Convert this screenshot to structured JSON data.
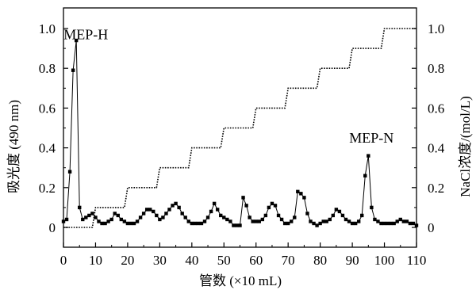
{
  "chart_data": {
    "type": "line",
    "xlabel": "管数 (×10 mL)",
    "ylabel_left": "吸光度 (490 nm)",
    "ylabel_right": "NaCl浓度/(mol/L)",
    "xlim": [
      0,
      110
    ],
    "ylim_left": [
      -0.1,
      1.0
    ],
    "ylim_right": [
      -0.1,
      1.0
    ],
    "x_ticks": [
      0,
      10,
      20,
      30,
      40,
      50,
      60,
      70,
      80,
      90,
      100,
      110
    ],
    "y_ticks_left": [
      0,
      0.2,
      0.4,
      0.6,
      0.8,
      1.0
    ],
    "y_ticks_right": [
      0,
      0.2,
      0.4,
      0.6,
      0.8,
      1.0
    ],
    "x_tick_labels": [
      "0",
      "10",
      "20",
      "30",
      "40",
      "50",
      "60",
      "70",
      "80",
      "90",
      "100",
      "110"
    ],
    "y_tick_labels": [
      "0",
      "0.2",
      "0.4",
      "0.6",
      "0.8",
      "1.0"
    ],
    "annotations": [
      {
        "text": "MEP-H",
        "x": 5,
        "y": 0.97
      },
      {
        "text": "MEP-N",
        "x": 94,
        "y": 0.45
      }
    ],
    "series": [
      {
        "style": "solid-square-markers",
        "axis": "left",
        "x": [
          0,
          1,
          2,
          3,
          4,
          5,
          6,
          7,
          8,
          9,
          10,
          11,
          12,
          13,
          14,
          15,
          16,
          17,
          18,
          19,
          20,
          21,
          22,
          23,
          24,
          25,
          26,
          27,
          28,
          29,
          30,
          31,
          32,
          33,
          34,
          35,
          36,
          37,
          38,
          39,
          40,
          41,
          42,
          43,
          44,
          45,
          46,
          47,
          48,
          49,
          50,
          51,
          52,
          53,
          54,
          55,
          56,
          57,
          58,
          59,
          60,
          61,
          62,
          63,
          64,
          65,
          66,
          67,
          68,
          69,
          70,
          71,
          72,
          73,
          74,
          75,
          76,
          77,
          78,
          79,
          80,
          81,
          82,
          83,
          84,
          85,
          86,
          87,
          88,
          89,
          90,
          91,
          92,
          93,
          94,
          95,
          96,
          97,
          98,
          99,
          100,
          101,
          102,
          103,
          104,
          105,
          106,
          107,
          108,
          109,
          110
        ],
        "y": [
          0.03,
          0.04,
          0.28,
          0.79,
          0.94,
          0.1,
          0.04,
          0.05,
          0.06,
          0.07,
          0.05,
          0.03,
          0.02,
          0.02,
          0.03,
          0.04,
          0.07,
          0.06,
          0.04,
          0.03,
          0.02,
          0.02,
          0.02,
          0.03,
          0.05,
          0.07,
          0.09,
          0.09,
          0.08,
          0.06,
          0.04,
          0.05,
          0.07,
          0.09,
          0.11,
          0.12,
          0.1,
          0.07,
          0.05,
          0.03,
          0.02,
          0.02,
          0.02,
          0.02,
          0.03,
          0.05,
          0.08,
          0.12,
          0.09,
          0.06,
          0.05,
          0.04,
          0.03,
          0.01,
          0.01,
          0.01,
          0.15,
          0.11,
          0.05,
          0.03,
          0.03,
          0.03,
          0.04,
          0.06,
          0.1,
          0.12,
          0.11,
          0.06,
          0.04,
          0.02,
          0.02,
          0.03,
          0.05,
          0.18,
          0.17,
          0.15,
          0.07,
          0.03,
          0.02,
          0.01,
          0.02,
          0.03,
          0.03,
          0.04,
          0.06,
          0.09,
          0.08,
          0.06,
          0.04,
          0.03,
          0.02,
          0.02,
          0.03,
          0.06,
          0.26,
          0.36,
          0.1,
          0.04,
          0.03,
          0.02,
          0.02,
          0.02,
          0.02,
          0.02,
          0.03,
          0.04,
          0.03,
          0.03,
          0.02,
          0.02,
          0.01
        ]
      },
      {
        "style": "dotted-step",
        "axis": "right",
        "x": [
          0,
          9,
          10,
          19,
          20,
          29,
          30,
          39,
          40,
          49,
          50,
          59,
          60,
          69,
          70,
          79,
          80,
          89,
          90,
          99,
          100,
          110
        ],
        "y": [
          0,
          0,
          0.1,
          0.1,
          0.2,
          0.2,
          0.3,
          0.3,
          0.4,
          0.4,
          0.5,
          0.5,
          0.6,
          0.6,
          0.7,
          0.7,
          0.8,
          0.8,
          0.9,
          0.9,
          1.0,
          1.0
        ]
      }
    ]
  }
}
